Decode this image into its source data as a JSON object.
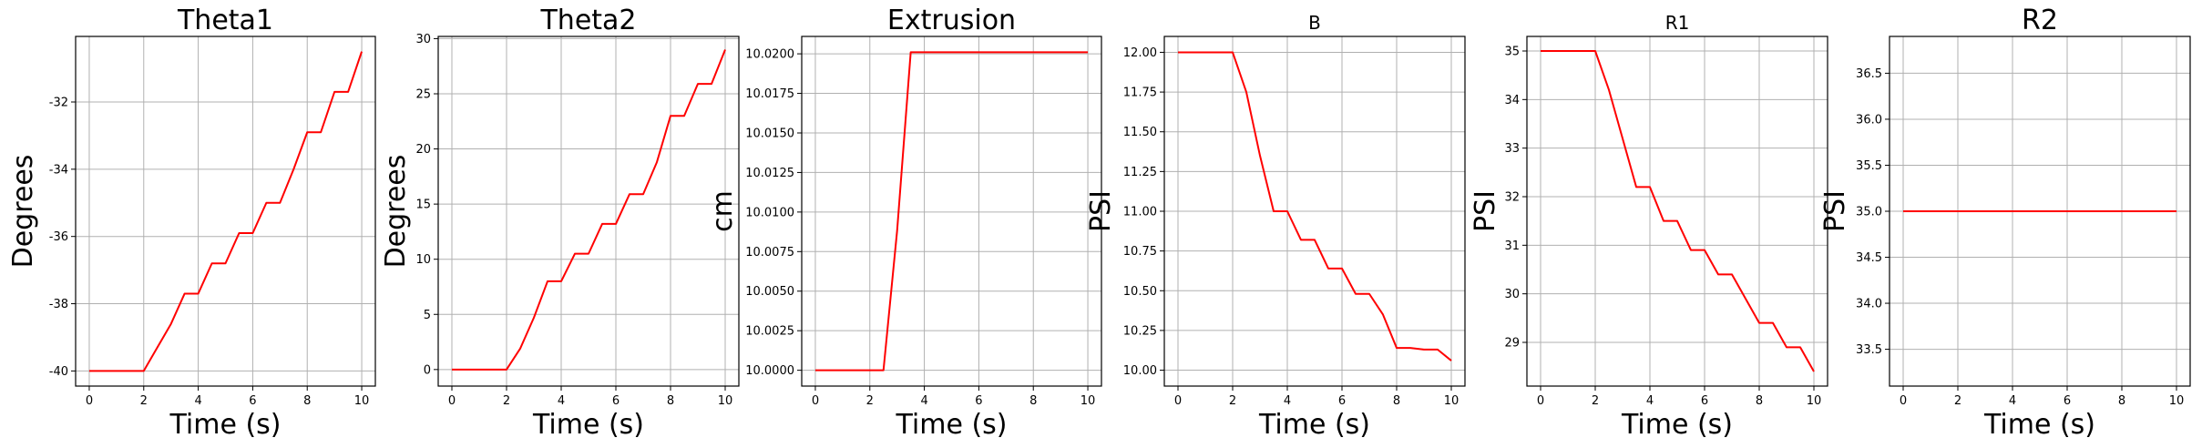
{
  "chart_data": [
    {
      "type": "line",
      "title": "Theta1",
      "xlabel": "Time (s)",
      "ylabel": "Degrees",
      "xlim": [
        -0.5,
        10.5
      ],
      "ylim": [
        -40.45,
        -30.05
      ],
      "xticks": [
        0,
        2,
        4,
        6,
        8,
        10
      ],
      "yticks": [
        -40,
        -38,
        -36,
        -34,
        -32
      ],
      "grid": true,
      "series": [
        {
          "color": "#ff0000",
          "x": [
            0,
            0.5,
            1,
            1.5,
            2,
            2.5,
            3,
            3.5,
            4,
            4.5,
            5,
            5.5,
            6,
            6.5,
            7,
            7.5,
            8,
            8.5,
            9,
            9.5,
            10
          ],
          "y": [
            -40,
            -40,
            -40,
            -40,
            -40,
            -39.3,
            -38.6,
            -37.7,
            -37.7,
            -36.8,
            -36.8,
            -35.9,
            -35.9,
            -35.0,
            -35.0,
            -34.0,
            -32.9,
            -32.9,
            -31.7,
            -31.7,
            -30.5
          ]
        }
      ]
    },
    {
      "type": "line",
      "title": "Theta2",
      "xlabel": "Time (s)",
      "ylabel": "Degrees",
      "xlim": [
        -0.5,
        10.5
      ],
      "ylim": [
        -1.5,
        30.2
      ],
      "xticks": [
        0,
        2,
        4,
        6,
        8,
        10
      ],
      "yticks": [
        0,
        5,
        10,
        15,
        20,
        25,
        30
      ],
      "grid": true,
      "series": [
        {
          "color": "#ff0000",
          "x": [
            0,
            0.5,
            1,
            1.5,
            2,
            2.5,
            3,
            3.5,
            4,
            4.5,
            5,
            5.5,
            6,
            6.5,
            7,
            7.5,
            8,
            8.5,
            9,
            9.5,
            10
          ],
          "y": [
            0,
            0,
            0,
            0,
            0,
            1.9,
            4.7,
            8.0,
            8.0,
            10.5,
            10.5,
            13.2,
            13.2,
            15.9,
            15.9,
            18.8,
            23.0,
            23.0,
            25.9,
            25.9,
            29.0
          ]
        }
      ]
    },
    {
      "type": "line",
      "title": "Extrusion",
      "xlabel": "Time (s)",
      "ylabel": "cm",
      "xlim": [
        -0.5,
        10.5
      ],
      "ylim": [
        9.999,
        10.0211
      ],
      "xticks": [
        0,
        2,
        4,
        6,
        8,
        10
      ],
      "yticks": [
        10.0,
        10.0025,
        10.005,
        10.0075,
        10.01,
        10.0125,
        10.015,
        10.0175,
        10.02
      ],
      "ytick_labels": [
        "10.0000",
        "10.0025",
        "10.0050",
        "10.0075",
        "10.0100",
        "10.0125",
        "10.0150",
        "10.0175",
        "10.0200"
      ],
      "grid": true,
      "series": [
        {
          "color": "#ff0000",
          "x": [
            0,
            0.5,
            1,
            1.5,
            2,
            2.5,
            3,
            3.5,
            4,
            5,
            6,
            7,
            8,
            9,
            10
          ],
          "y": [
            10.0,
            10.0,
            10.0,
            10.0,
            10.0,
            10.0,
            10.0088,
            10.0201,
            10.0201,
            10.0201,
            10.0201,
            10.0201,
            10.0201,
            10.0201,
            10.0201
          ]
        }
      ]
    },
    {
      "type": "line",
      "title": "B",
      "xlabel": "Time (s)",
      "ylabel": "PSI",
      "xlim": [
        -0.5,
        10.5
      ],
      "ylim": [
        9.9,
        12.1
      ],
      "xticks": [
        0,
        2,
        4,
        6,
        8,
        10
      ],
      "yticks": [
        10.0,
        10.25,
        10.5,
        10.75,
        11.0,
        11.25,
        11.5,
        11.75,
        12.0
      ],
      "ytick_labels": [
        "10.00",
        "10.25",
        "10.50",
        "10.75",
        "11.00",
        "11.25",
        "11.50",
        "11.75",
        "12.00"
      ],
      "grid": true,
      "series": [
        {
          "color": "#ff0000",
          "x": [
            0,
            0.5,
            1,
            1.5,
            2,
            2.5,
            3,
            3.5,
            4,
            4.5,
            5,
            5.5,
            6,
            6.5,
            7,
            7.5,
            8,
            8.5,
            9,
            9.5,
            10
          ],
          "y": [
            12.0,
            12.0,
            12.0,
            12.0,
            12.0,
            11.75,
            11.35,
            11.0,
            11.0,
            10.82,
            10.82,
            10.64,
            10.64,
            10.48,
            10.48,
            10.35,
            10.14,
            10.14,
            10.13,
            10.13,
            10.06
          ]
        }
      ]
    },
    {
      "type": "line",
      "title": "R1",
      "xlabel": "Time (s)",
      "ylabel": "PSI",
      "xlim": [
        -0.5,
        10.5
      ],
      "ylim": [
        28.1,
        35.3
      ],
      "xticks": [
        0,
        2,
        4,
        6,
        8,
        10
      ],
      "yticks": [
        29,
        30,
        31,
        32,
        33,
        34,
        35
      ],
      "grid": true,
      "series": [
        {
          "color": "#ff0000",
          "x": [
            0,
            0.5,
            1,
            1.5,
            2,
            2.5,
            3,
            3.5,
            4,
            4.5,
            5,
            5.5,
            6,
            6.5,
            7,
            7.5,
            8,
            8.5,
            9,
            9.5,
            10
          ],
          "y": [
            35,
            35,
            35,
            35,
            35,
            34.2,
            33.2,
            32.2,
            32.2,
            31.5,
            31.5,
            30.9,
            30.9,
            30.4,
            30.4,
            29.9,
            29.4,
            29.4,
            28.9,
            28.9,
            28.4
          ]
        }
      ]
    },
    {
      "type": "line",
      "title": "R2",
      "xlabel": "Time (s)",
      "ylabel": "PSI",
      "xlim": [
        -0.5,
        10.5
      ],
      "ylim": [
        33.1,
        36.9
      ],
      "xticks": [
        0,
        2,
        4,
        6,
        8,
        10
      ],
      "yticks": [
        33.5,
        34.0,
        34.5,
        35.0,
        35.5,
        36.0,
        36.5
      ],
      "ytick_labels": [
        "33.5",
        "34.0",
        "34.5",
        "35.0",
        "35.5",
        "36.0",
        "36.5"
      ],
      "grid": true,
      "series": [
        {
          "color": "#ff0000",
          "x": [
            0,
            10
          ],
          "y": [
            35,
            35
          ]
        }
      ]
    }
  ],
  "colors": {
    "line": "#ff0000",
    "grid": "#b0b0b0",
    "axes": "#000000"
  }
}
